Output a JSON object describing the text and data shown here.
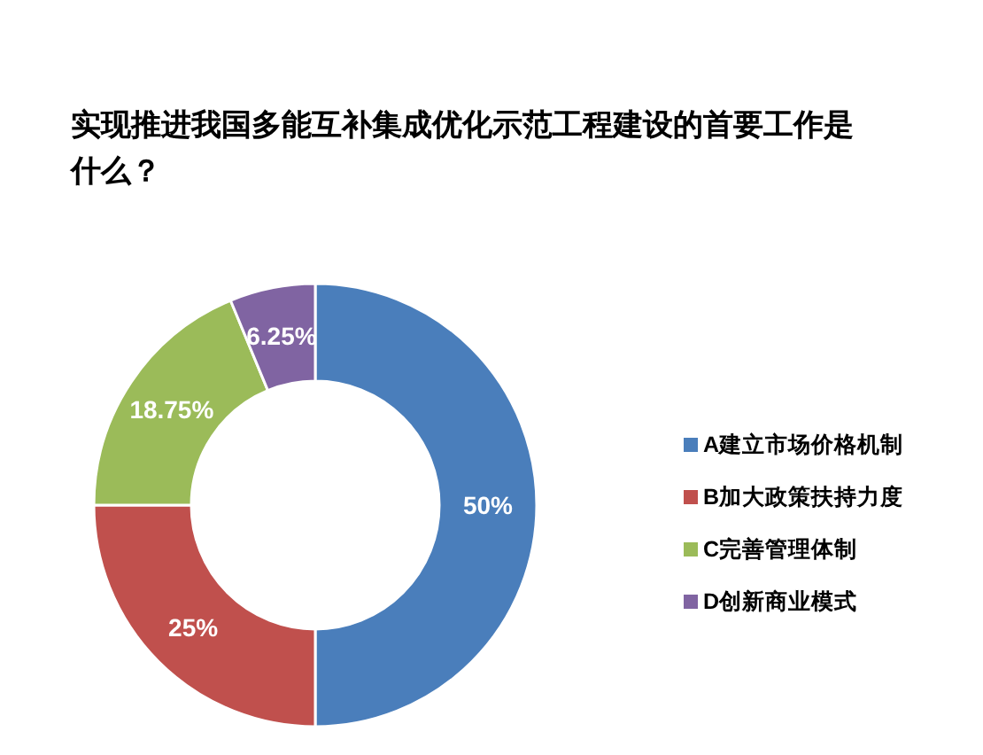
{
  "chart_data": {
    "type": "donut",
    "title": "实现推进我国多能互补集成优化示范工程建设的首要工作是什么？",
    "categories": [
      "A建立市场价格机制",
      "B加大政策扶持力度",
      "C完善管理体制",
      "D创新商业模式"
    ],
    "values": [
      50,
      25,
      18.75,
      6.25
    ],
    "colors": [
      "#4a7ebb",
      "#c0504d",
      "#9bbb59",
      "#8064a2"
    ],
    "value_labels": [
      "50%",
      "25%",
      "18.75%",
      "6.25%"
    ],
    "legend": "right"
  }
}
